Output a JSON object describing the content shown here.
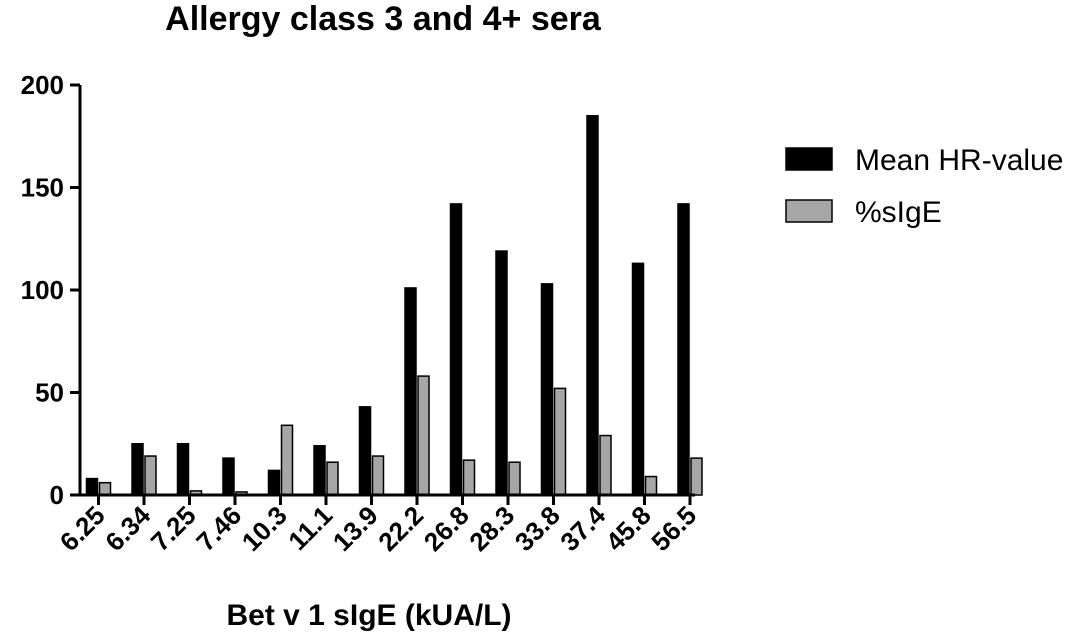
{
  "chart_data": {
    "type": "bar",
    "title": "Allergy class 3 and 4+ sera",
    "xlabel": "Bet v 1 sIgE (kUA/L)",
    "ylabel": "",
    "ylim": [
      0,
      200
    ],
    "yticks": [
      0,
      50,
      100,
      150,
      200
    ],
    "grid": false,
    "legend_position": "right",
    "categories": [
      "6.25",
      "6.34",
      "7.25",
      "7.46",
      "10.3",
      "11.1",
      "13.9",
      "22.2",
      "26.8",
      "28.3",
      "33.8",
      "37.4",
      "45.8",
      "56.5"
    ],
    "series": [
      {
        "name": "Mean HR-value",
        "color": "#000000",
        "values": [
          8,
          25,
          25,
          18,
          12,
          24,
          43,
          101,
          142,
          119,
          103,
          185,
          113,
          142
        ]
      },
      {
        "name": "%sIgE",
        "color": "#a6a6a6",
        "values": [
          6,
          19,
          2,
          1.5,
          34,
          16,
          19,
          58,
          17,
          16,
          52,
          29,
          9,
          18
        ]
      }
    ]
  }
}
